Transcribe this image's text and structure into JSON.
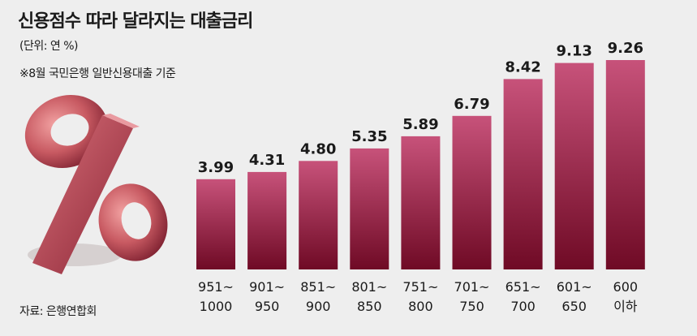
{
  "header": {
    "title": "신용점수 따라 달라지는 대출금리",
    "subtitle": "(단위: 연 %)",
    "note": "※8월 국민은행 일반신용대출 기준"
  },
  "footer": {
    "source": "자료: 은행연합회"
  },
  "colors": {
    "bar_top": "#c7527a",
    "bar_bottom": "#6f0a25",
    "background": "#eeeeee",
    "percent_art": "#b94a55"
  },
  "chart_data": {
    "type": "bar",
    "title": "신용점수 따라 달라지는 대출금리",
    "subtitle": "(단위: 연 %)",
    "xlabel": "",
    "ylabel": "",
    "categories": [
      [
        "951~",
        "1000"
      ],
      [
        "901~",
        "950"
      ],
      [
        "851~",
        "900"
      ],
      [
        "801~",
        "850"
      ],
      [
        "751~",
        "800"
      ],
      [
        "701~",
        "750"
      ],
      [
        "651~",
        "700"
      ],
      [
        "601~",
        "650"
      ],
      [
        "600",
        "이하"
      ]
    ],
    "values": [
      3.99,
      4.31,
      4.8,
      5.35,
      5.89,
      6.79,
      8.42,
      9.13,
      9.26
    ],
    "value_labels": [
      "3.99",
      "4.31",
      "4.80",
      "5.35",
      "5.89",
      "6.79",
      "8.42",
      "9.13",
      "9.26"
    ],
    "ylim": [
      0,
      9.26
    ],
    "grid": false,
    "legend": "none"
  }
}
